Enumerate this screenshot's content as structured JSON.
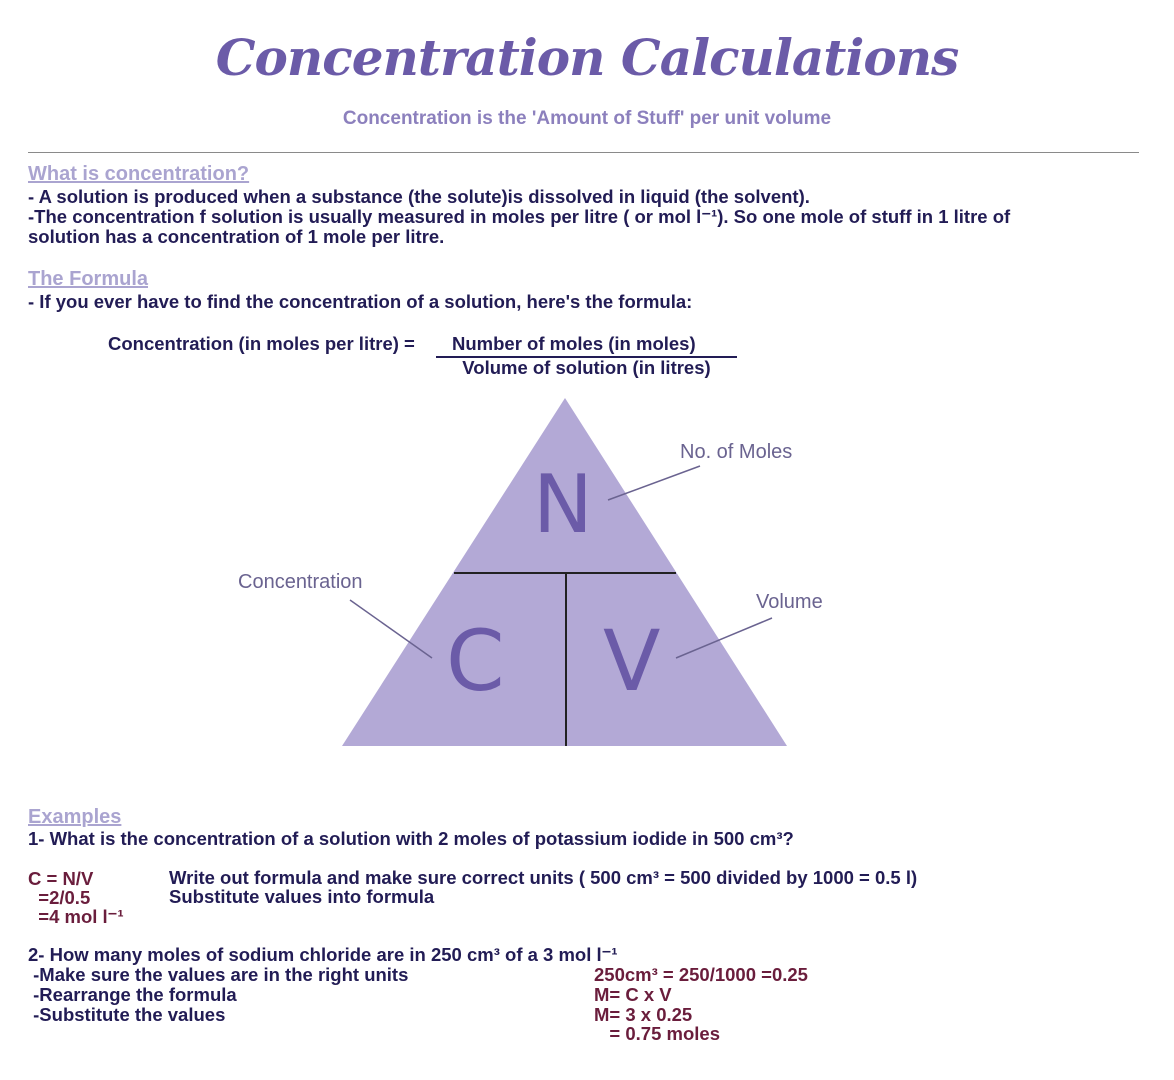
{
  "header": {
    "title": "Concentration Calculations",
    "subtitle": "Concentration is the 'Amount of Stuff' per unit volume"
  },
  "section1": {
    "heading": "What is concentration?",
    "lines": [
      "- A solution is produced when a substance (the solute)is dissolved in liquid (the solvent).",
      "-The concentration f solution is usually measured in moles per litre ( or mol l⁻¹). So one mole of stuff in 1 litre of",
      "solution has a concentration of 1 mole per litre."
    ]
  },
  "section2": {
    "heading": "The Formula",
    "intro": "- If you ever have to find the concentration of a solution, here's the formula:",
    "lhs": "Concentration (in moles per litre) = ",
    "numerator": "Number of moles (in moles)",
    "denominator": "Volume of solution (in litres)"
  },
  "triangle": {
    "top": "N",
    "left": "C",
    "right": "V",
    "label_n": "No. of Moles",
    "label_c": "Concentration",
    "label_v": "Volume",
    "fill": "#b3a9d6",
    "letter_color": "#6b5ba8"
  },
  "examples": {
    "heading": "Examples",
    "q1": "1- What is the concentration of a solution with 2 moles of potassium iodide in 500 cm³?",
    "q1_work": [
      "C = N/V",
      "  =2/0.5",
      "  =4 mol l⁻¹"
    ],
    "q1_notes": [
      "Write out formula and make sure correct units ( 500 cm³ = 500 divided by 1000 = 0.5 l)",
      "Substitute values into formula"
    ],
    "q2": "2- How many moles of sodium chloride are in 250 cm³ of a 3 mol l⁻¹",
    "q2_steps": [
      " -Make sure the values are in the right units",
      " -Rearrange the formula",
      " -Substitute the values"
    ],
    "q2_work": [
      "250cm³ = 250/1000 =0.25",
      "M= C x V",
      "M= 3 x 0.25",
      "   = 0.75 moles"
    ]
  }
}
